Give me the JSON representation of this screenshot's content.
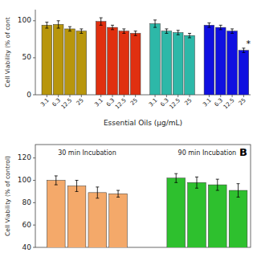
{
  "chart_data": [
    {
      "type": "bar",
      "categories": [
        "3.1",
        "6.3",
        "12.5",
        "25"
      ],
      "series": [
        {
          "color": "#b8960c",
          "values": [
            94,
            95,
            89,
            86
          ],
          "errors": [
            4,
            5,
            3,
            3
          ]
        },
        {
          "color": "#e03010",
          "values": [
            99,
            91,
            86,
            83
          ],
          "errors": [
            5,
            3,
            3,
            3
          ]
        },
        {
          "color": "#2db8a8",
          "values": [
            96,
            86,
            84,
            80
          ],
          "errors": [
            5,
            3,
            3,
            3
          ]
        },
        {
          "color": "#1010e0",
          "values": [
            94,
            91,
            86,
            60
          ],
          "errors": [
            3,
            3,
            3,
            3
          ]
        }
      ],
      "xlabel": "Essential Oils (μg/mL)",
      "ylabel": "Cell Viability (% of cont",
      "ylim": [
        0,
        115
      ],
      "yticks": [
        0,
        50,
        100
      ],
      "annotations": [
        "*"
      ]
    },
    {
      "type": "bar",
      "series": [
        {
          "name": "30 min Incubation",
          "color": "#f4a96a",
          "values": [
            100,
            95,
            89,
            88
          ],
          "errors": [
            4,
            5,
            5,
            3
          ]
        },
        {
          "name": "90 min Incubation",
          "color": "#2ec02e",
          "values": [
            102,
            98,
            96,
            91
          ],
          "errors": [
            4,
            5,
            5,
            6
          ]
        }
      ],
      "ylabel": "Cell Viability (% of control)",
      "ylim": [
        40,
        132
      ],
      "yticks": [
        40,
        60,
        80,
        100,
        120
      ],
      "annotations": [
        "B"
      ],
      "tick_labels": "y"
    }
  ]
}
